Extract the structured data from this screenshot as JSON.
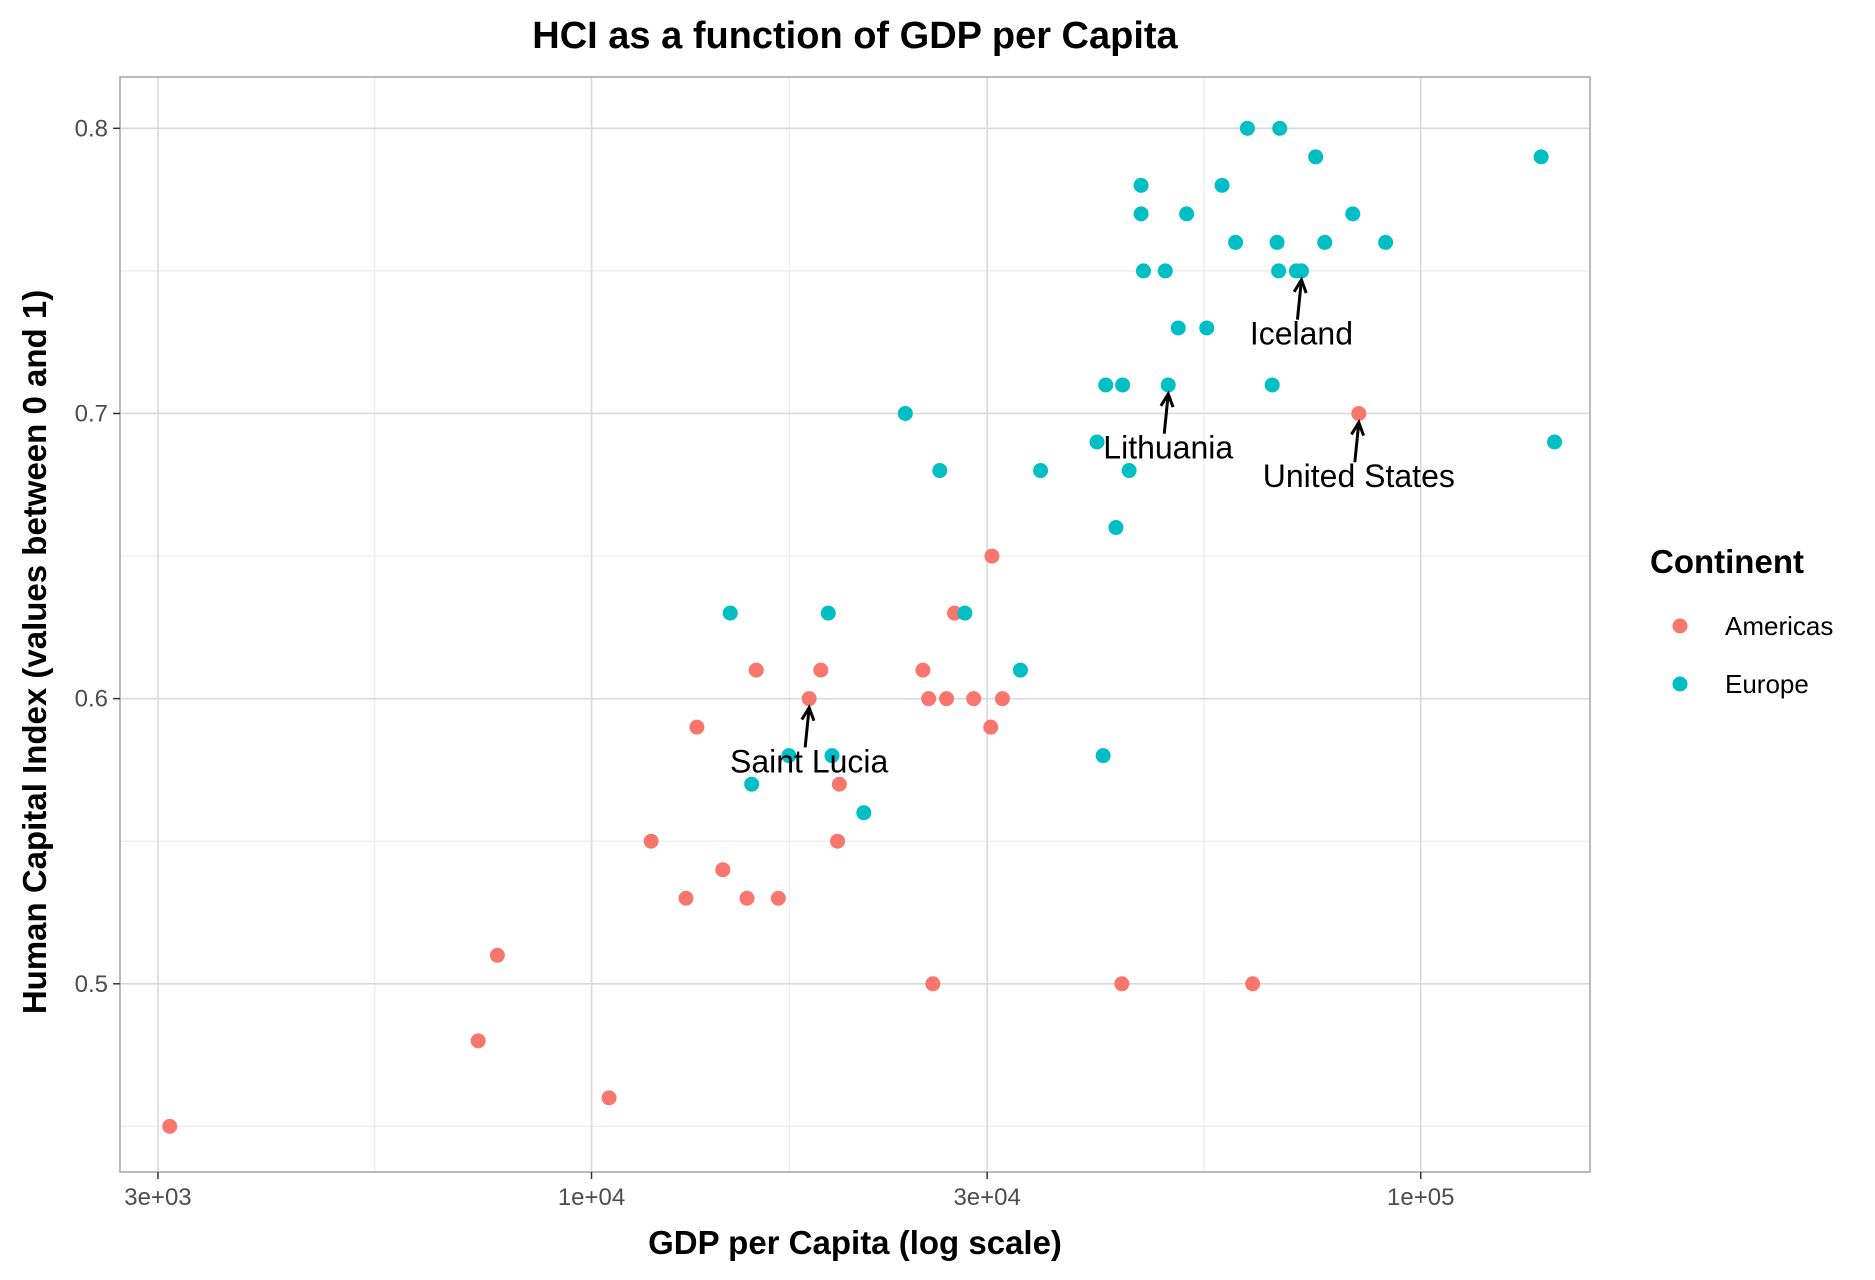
{
  "chart_data": {
    "type": "scatter",
    "title": "HCI as a function of GDP per Capita",
    "xlabel": "GDP per Capita (log scale)",
    "ylabel": "Human Capital Index (values between 0 and 1)",
    "x_scale": "log10",
    "xlim": [
      2700,
      160000
    ],
    "ylim": [
      0.434,
      0.818
    ],
    "x_ticks": [
      {
        "value": 3000,
        "label": "3e+03"
      },
      {
        "value": 10000,
        "label": "1e+04"
      },
      {
        "value": 30000,
        "label": "3e+04"
      },
      {
        "value": 100000,
        "label": "1e+05"
      }
    ],
    "x_minor_ticks": [
      5477,
      17321,
      54772
    ],
    "y_ticks": [
      {
        "value": 0.5,
        "label": "0.5"
      },
      {
        "value": 0.6,
        "label": "0.6"
      },
      {
        "value": 0.7,
        "label": "0.7"
      },
      {
        "value": 0.8,
        "label": "0.8"
      }
    ],
    "y_minor_ticks": [
      0.45,
      0.55,
      0.65,
      0.75
    ],
    "grid": true,
    "legend": {
      "title": "Continent",
      "position": "right",
      "entries": [
        {
          "name": "Americas",
          "color": "#F8766D"
        },
        {
          "name": "Europe",
          "color": "#00BFC4"
        }
      ]
    },
    "series": [
      {
        "name": "Americas",
        "color": "#F8766D",
        "points": [
          [
            3100,
            0.45
          ],
          [
            7300,
            0.48
          ],
          [
            7700,
            0.51
          ],
          [
            10500,
            0.46
          ],
          [
            11800,
            0.55
          ],
          [
            13000,
            0.53
          ],
          [
            13400,
            0.59
          ],
          [
            14400,
            0.54
          ],
          [
            15400,
            0.53
          ],
          [
            15800,
            0.61
          ],
          [
            16800,
            0.53
          ],
          [
            18300,
            0.6
          ],
          [
            18900,
            0.61
          ],
          [
            19900,
            0.57
          ],
          [
            19800,
            0.55
          ],
          [
            25100,
            0.61
          ],
          [
            25500,
            0.6
          ],
          [
            25800,
            0.5
          ],
          [
            26800,
            0.6
          ],
          [
            27400,
            0.63
          ],
          [
            28900,
            0.6
          ],
          [
            30300,
            0.59
          ],
          [
            30400,
            0.65
          ],
          [
            31300,
            0.6
          ],
          [
            43600,
            0.5
          ],
          [
            62700,
            0.5
          ],
          [
            84200,
            0.7
          ]
        ]
      },
      {
        "name": "Europe",
        "color": "#00BFC4",
        "points": [
          [
            14700,
            0.63
          ],
          [
            15600,
            0.57
          ],
          [
            17300,
            0.58
          ],
          [
            19500,
            0.58
          ],
          [
            19300,
            0.63
          ],
          [
            21300,
            0.56
          ],
          [
            23900,
            0.7
          ],
          [
            26300,
            0.68
          ],
          [
            28200,
            0.63
          ],
          [
            32900,
            0.61
          ],
          [
            34800,
            0.68
          ],
          [
            40700,
            0.69
          ],
          [
            41700,
            0.71
          ],
          [
            41400,
            0.58
          ],
          [
            42900,
            0.66
          ],
          [
            43700,
            0.71
          ],
          [
            44500,
            0.68
          ],
          [
            46000,
            0.78
          ],
          [
            46000,
            0.77
          ],
          [
            46300,
            0.75
          ],
          [
            49200,
            0.75
          ],
          [
            49600,
            0.71
          ],
          [
            51000,
            0.73
          ],
          [
            52200,
            0.77
          ],
          [
            55200,
            0.73
          ],
          [
            57600,
            0.78
          ],
          [
            59800,
            0.76
          ],
          [
            61800,
            0.8
          ],
          [
            66200,
            0.71
          ],
          [
            67600,
            0.8
          ],
          [
            67100,
            0.76
          ],
          [
            67400,
            0.75
          ],
          [
            70800,
            0.75
          ],
          [
            71800,
            0.75
          ],
          [
            74700,
            0.79
          ],
          [
            76600,
            0.76
          ],
          [
            82800,
            0.77
          ],
          [
            90700,
            0.76
          ],
          [
            139700,
            0.79
          ],
          [
            145000,
            0.69
          ]
        ]
      }
    ],
    "annotations": [
      {
        "text": "Iceland",
        "x": 71800,
        "y": 0.75,
        "label_y": 0.728
      },
      {
        "text": "Lithuania",
        "x": 49600,
        "y": 0.71,
        "label_y": 0.688
      },
      {
        "text": "United States",
        "x": 84200,
        "y": 0.7,
        "label_y": 0.678
      },
      {
        "text": "Saint Lucia",
        "x": 18300,
        "y": 0.6,
        "label_y": 0.578
      }
    ]
  }
}
